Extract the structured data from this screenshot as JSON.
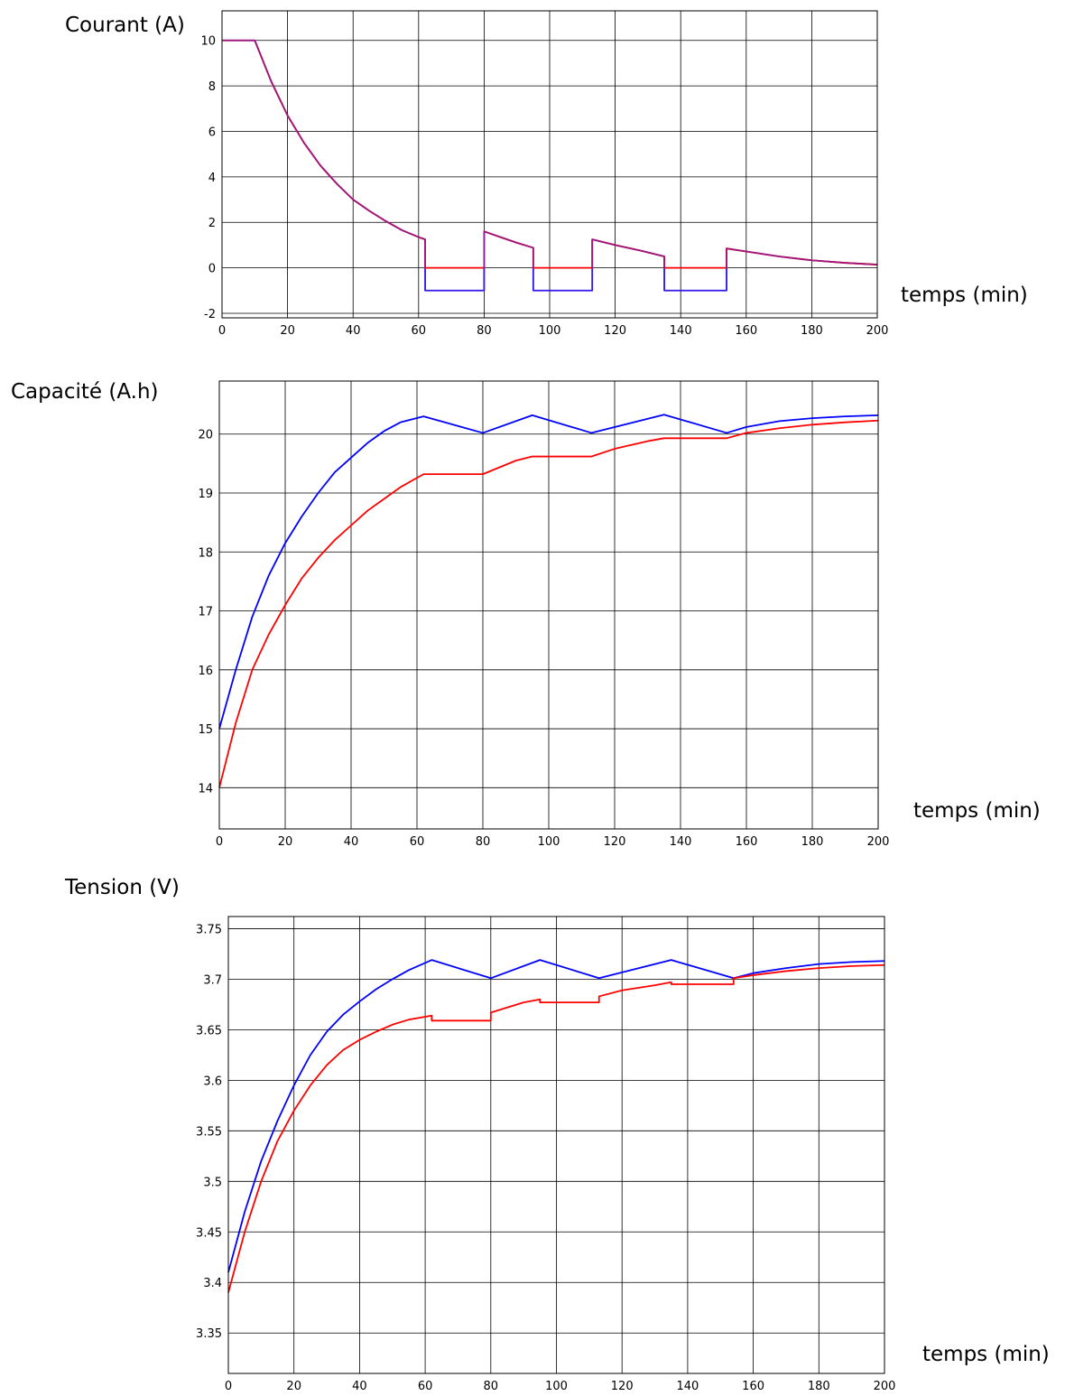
{
  "chart_data": [
    {
      "type": "line",
      "ylabel": "Courant (A)",
      "xlabel": "temps (min)",
      "xlim": [
        0,
        200
      ],
      "ylim": [
        -2.2,
        11.3
      ],
      "xticks": [
        0,
        20,
        40,
        60,
        80,
        100,
        120,
        140,
        160,
        180,
        200
      ],
      "yticks": [
        -2,
        0,
        2,
        4,
        6,
        8,
        10
      ],
      "grid": true,
      "series": [
        {
          "color": "#0000ff",
          "points": [
            [
              0,
              10
            ],
            [
              10,
              10
            ],
            [
              15,
              8.2
            ],
            [
              20,
              6.7
            ],
            [
              25,
              5.5
            ],
            [
              30,
              4.5
            ],
            [
              35,
              3.7
            ],
            [
              40,
              3.0
            ],
            [
              45,
              2.5
            ],
            [
              50,
              2.05
            ],
            [
              55,
              1.65
            ],
            [
              60,
              1.35
            ],
            [
              62,
              1.25
            ],
            [
              62,
              -1
            ],
            [
              80,
              -1
            ],
            [
              80,
              1.6
            ],
            [
              85,
              1.35
            ],
            [
              90,
              1.1
            ],
            [
              95,
              0.88
            ],
            [
              95,
              -1
            ],
            [
              113,
              -1
            ],
            [
              113,
              1.25
            ],
            [
              120,
              1.0
            ],
            [
              128,
              0.75
            ],
            [
              135,
              0.5
            ],
            [
              135,
              -1
            ],
            [
              154,
              -1
            ],
            [
              154,
              0.85
            ],
            [
              160,
              0.72
            ],
            [
              170,
              0.5
            ],
            [
              180,
              0.33
            ],
            [
              190,
              0.22
            ],
            [
              200,
              0.14
            ]
          ]
        },
        {
          "color": "#ff0000",
          "points": [
            [
              0,
              10
            ],
            [
              10,
              10
            ],
            [
              15,
              8.2
            ],
            [
              20,
              6.7
            ],
            [
              25,
              5.5
            ],
            [
              30,
              4.5
            ],
            [
              35,
              3.7
            ],
            [
              40,
              3.0
            ],
            [
              45,
              2.5
            ],
            [
              50,
              2.05
            ],
            [
              55,
              1.65
            ],
            [
              60,
              1.35
            ],
            [
              62,
              1.25
            ],
            [
              62,
              0
            ],
            [
              80,
              0
            ],
            [
              80,
              1.6
            ],
            [
              85,
              1.35
            ],
            [
              90,
              1.1
            ],
            [
              95,
              0.88
            ],
            [
              95,
              0
            ],
            [
              113,
              0
            ],
            [
              113,
              1.25
            ],
            [
              120,
              1.0
            ],
            [
              128,
              0.75
            ],
            [
              135,
              0.5
            ],
            [
              135,
              0
            ],
            [
              154,
              0
            ],
            [
              154,
              0.85
            ],
            [
              160,
              0.72
            ],
            [
              170,
              0.5
            ],
            [
              180,
              0.33
            ],
            [
              190,
              0.22
            ],
            [
              200,
              0.14
            ]
          ]
        }
      ]
    },
    {
      "type": "line",
      "ylabel": "Capacité (A.h)",
      "xlabel": "temps (min)",
      "xlim": [
        0,
        200
      ],
      "ylim": [
        13.3,
        20.9
      ],
      "xticks": [
        0,
        20,
        40,
        60,
        80,
        100,
        120,
        140,
        160,
        180,
        200
      ],
      "yticks": [
        14,
        15,
        16,
        17,
        18,
        19,
        20
      ],
      "grid": true,
      "series": [
        {
          "color": "#0000ff",
          "points": [
            [
              0,
              15.0
            ],
            [
              5,
              16.0
            ],
            [
              10,
              16.9
            ],
            [
              15,
              17.6
            ],
            [
              20,
              18.15
            ],
            [
              25,
              18.6
            ],
            [
              30,
              19.0
            ],
            [
              35,
              19.35
            ],
            [
              40,
              19.6
            ],
            [
              45,
              19.85
            ],
            [
              50,
              20.05
            ],
            [
              55,
              20.2
            ],
            [
              62,
              20.3
            ],
            [
              80,
              20.02
            ],
            [
              95,
              20.32
            ],
            [
              113,
              20.02
            ],
            [
              135,
              20.33
            ],
            [
              154,
              20.02
            ],
            [
              160,
              20.12
            ],
            [
              170,
              20.22
            ],
            [
              180,
              20.27
            ],
            [
              190,
              20.3
            ],
            [
              200,
              20.32
            ]
          ]
        },
        {
          "color": "#ff0000",
          "points": [
            [
              0,
              14.0
            ],
            [
              5,
              15.1
            ],
            [
              10,
              16.0
            ],
            [
              15,
              16.6
            ],
            [
              20,
              17.1
            ],
            [
              25,
              17.55
            ],
            [
              30,
              17.9
            ],
            [
              35,
              18.2
            ],
            [
              40,
              18.45
            ],
            [
              45,
              18.7
            ],
            [
              50,
              18.9
            ],
            [
              55,
              19.1
            ],
            [
              62,
              19.32
            ],
            [
              80,
              19.32
            ],
            [
              90,
              19.55
            ],
            [
              95,
              19.62
            ],
            [
              113,
              19.62
            ],
            [
              120,
              19.75
            ],
            [
              130,
              19.88
            ],
            [
              135,
              19.93
            ],
            [
              154,
              19.93
            ],
            [
              160,
              20.02
            ],
            [
              170,
              20.1
            ],
            [
              180,
              20.16
            ],
            [
              190,
              20.2
            ],
            [
              200,
              20.23
            ]
          ]
        }
      ]
    },
    {
      "type": "line",
      "ylabel": "Tension (V)",
      "xlabel": "temps (min)",
      "xlim": [
        0,
        200
      ],
      "ylim": [
        3.31,
        3.762
      ],
      "xticks": [
        0,
        20,
        40,
        60,
        80,
        100,
        120,
        140,
        160,
        180,
        200
      ],
      "yticks": [
        3.35,
        3.4,
        3.45,
        3.5,
        3.55,
        3.6,
        3.65,
        3.7,
        3.75
      ],
      "grid": true,
      "series": [
        {
          "color": "#0000ff",
          "points": [
            [
              0,
              3.41
            ],
            [
              5,
              3.47
            ],
            [
              10,
              3.52
            ],
            [
              15,
              3.56
            ],
            [
              20,
              3.595
            ],
            [
              25,
              3.625
            ],
            [
              30,
              3.648
            ],
            [
              35,
              3.665
            ],
            [
              40,
              3.678
            ],
            [
              45,
              3.69
            ],
            [
              50,
              3.7
            ],
            [
              55,
              3.709
            ],
            [
              62,
              3.719
            ],
            [
              80,
              3.701
            ],
            [
              95,
              3.719
            ],
            [
              113,
              3.701
            ],
            [
              135,
              3.719
            ],
            [
              154,
              3.701
            ],
            [
              160,
              3.706
            ],
            [
              170,
              3.711
            ],
            [
              180,
              3.715
            ],
            [
              190,
              3.717
            ],
            [
              200,
              3.718
            ]
          ]
        },
        {
          "color": "#ff0000",
          "points": [
            [
              0,
              3.39
            ],
            [
              5,
              3.45
            ],
            [
              10,
              3.5
            ],
            [
              15,
              3.54
            ],
            [
              20,
              3.57
            ],
            [
              25,
              3.595
            ],
            [
              30,
              3.615
            ],
            [
              35,
              3.63
            ],
            [
              40,
              3.64
            ],
            [
              45,
              3.648
            ],
            [
              50,
              3.655
            ],
            [
              55,
              3.66
            ],
            [
              62,
              3.664
            ],
            [
              62,
              3.659
            ],
            [
              80,
              3.659
            ],
            [
              80,
              3.667
            ],
            [
              90,
              3.677
            ],
            [
              95,
              3.68
            ],
            [
              95,
              3.677
            ],
            [
              113,
              3.677
            ],
            [
              113,
              3.683
            ],
            [
              120,
              3.689
            ],
            [
              130,
              3.694
            ],
            [
              135,
              3.697
            ],
            [
              135,
              3.695
            ],
            [
              154,
              3.695
            ],
            [
              154,
              3.701
            ],
            [
              160,
              3.704
            ],
            [
              170,
              3.708
            ],
            [
              180,
              3.711
            ],
            [
              190,
              3.713
            ],
            [
              200,
              3.714
            ]
          ]
        }
      ]
    }
  ]
}
